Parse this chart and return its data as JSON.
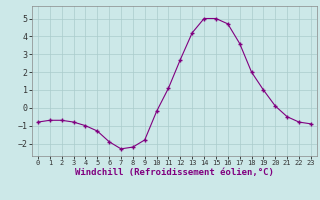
{
  "x": [
    0,
    1,
    2,
    3,
    4,
    5,
    6,
    7,
    8,
    9,
    10,
    11,
    12,
    13,
    14,
    15,
    16,
    17,
    18,
    19,
    20,
    21,
    22,
    23
  ],
  "y": [
    -0.8,
    -0.7,
    -0.7,
    -0.8,
    -1.0,
    -1.3,
    -1.9,
    -2.3,
    -2.2,
    -1.8,
    -0.2,
    1.1,
    2.7,
    4.2,
    5.0,
    5.0,
    4.7,
    3.6,
    2.0,
    1.0,
    0.1,
    -0.5,
    -0.8,
    -0.9
  ],
  "line_color": "#800080",
  "marker": "+",
  "marker_size": 3,
  "xlim": [
    -0.5,
    23.5
  ],
  "ylim": [
    -2.7,
    5.7
  ],
  "yticks": [
    -2,
    -1,
    0,
    1,
    2,
    3,
    4,
    5
  ],
  "xticks": [
    0,
    1,
    2,
    3,
    4,
    5,
    6,
    7,
    8,
    9,
    10,
    11,
    12,
    13,
    14,
    15,
    16,
    17,
    18,
    19,
    20,
    21,
    22,
    23
  ],
  "xlabel": "Windchill (Refroidissement éolien,°C)",
  "bg_color": "#cce8e8",
  "grid_color": "#aacccc",
  "tick_label_size": 5,
  "xlabel_size": 6.5,
  "ytick_label_size": 6
}
